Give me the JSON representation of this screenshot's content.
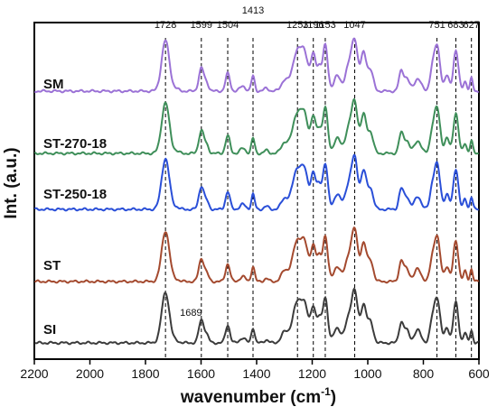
{
  "chart_data": {
    "type": "line",
    "xlabel": "wavenumber (cm",
    "xlabel_superscript": "-1",
    "xlabel_suffix": ")",
    "ylabel": "Int. (a.u.)",
    "xlim": [
      2200,
      600
    ],
    "x_reversed": true,
    "xticks": [
      2200,
      2000,
      1800,
      1600,
      1400,
      1200,
      1000,
      800,
      600
    ],
    "xtick_labels": [
      "2200",
      "2000",
      "1800",
      "1600",
      "1400",
      "1200",
      "1000",
      "800",
      "600"
    ],
    "grid": false,
    "peak_lines": [
      1728,
      1599,
      1504,
      1413,
      1253,
      1196,
      1153,
      1047,
      751,
      683,
      627
    ],
    "peak_labels": [
      {
        "label": "1728",
        "x": 1728
      },
      {
        "label": "1599",
        "x": 1599
      },
      {
        "label": "1504",
        "x": 1504
      },
      {
        "label": "1413",
        "x": 1413
      },
      {
        "label": "1253",
        "x": 1253
      },
      {
        "label": "1196",
        "x": 1196
      },
      {
        "label": "1153",
        "x": 1153
      },
      {
        "label": "1047",
        "x": 1047
      },
      {
        "label": "751",
        "x": 751
      },
      {
        "label": "683",
        "x": 683
      },
      {
        "label": "627",
        "x": 627
      }
    ],
    "annotations": [
      {
        "label": "1689",
        "x": 1689
      }
    ],
    "peak_shape": [
      [
        1728,
        1.0,
        14
      ],
      [
        1689,
        0.04,
        10
      ],
      [
        1599,
        0.45,
        9
      ],
      [
        1580,
        0.15,
        8
      ],
      [
        1504,
        0.35,
        8
      ],
      [
        1450,
        0.1,
        10
      ],
      [
        1413,
        0.3,
        6
      ],
      [
        1365,
        0.06,
        8
      ],
      [
        1300,
        0.2,
        12
      ],
      [
        1253,
        0.8,
        18
      ],
      [
        1225,
        0.55,
        12
      ],
      [
        1196,
        0.7,
        9
      ],
      [
        1175,
        0.45,
        8
      ],
      [
        1153,
        0.9,
        9
      ],
      [
        1110,
        0.3,
        12
      ],
      [
        1070,
        0.45,
        12
      ],
      [
        1047,
        0.98,
        11
      ],
      [
        1015,
        0.75,
        10
      ],
      [
        990,
        0.4,
        10
      ],
      [
        880,
        0.38,
        8
      ],
      [
        860,
        0.25,
        10
      ],
      [
        820,
        0.25,
        12
      ],
      [
        770,
        0.3,
        8
      ],
      [
        751,
        0.9,
        11
      ],
      [
        715,
        0.3,
        8
      ],
      [
        683,
        0.8,
        9
      ],
      [
        650,
        0.2,
        6
      ],
      [
        627,
        0.25,
        5
      ]
    ],
    "series": [
      {
        "name": "SM",
        "color": "#9b72d6",
        "scale": 1.0
      },
      {
        "name": "ST-270-18",
        "color": "#3f8f5a",
        "scale": 1.0
      },
      {
        "name": "ST-250-18",
        "color": "#2a4fd8",
        "scale": 1.0
      },
      {
        "name": "ST",
        "color": "#a44a2f",
        "scale": 1.0
      },
      {
        "name": "SI",
        "color": "#3c3c3c",
        "scale": 1.0
      }
    ]
  }
}
